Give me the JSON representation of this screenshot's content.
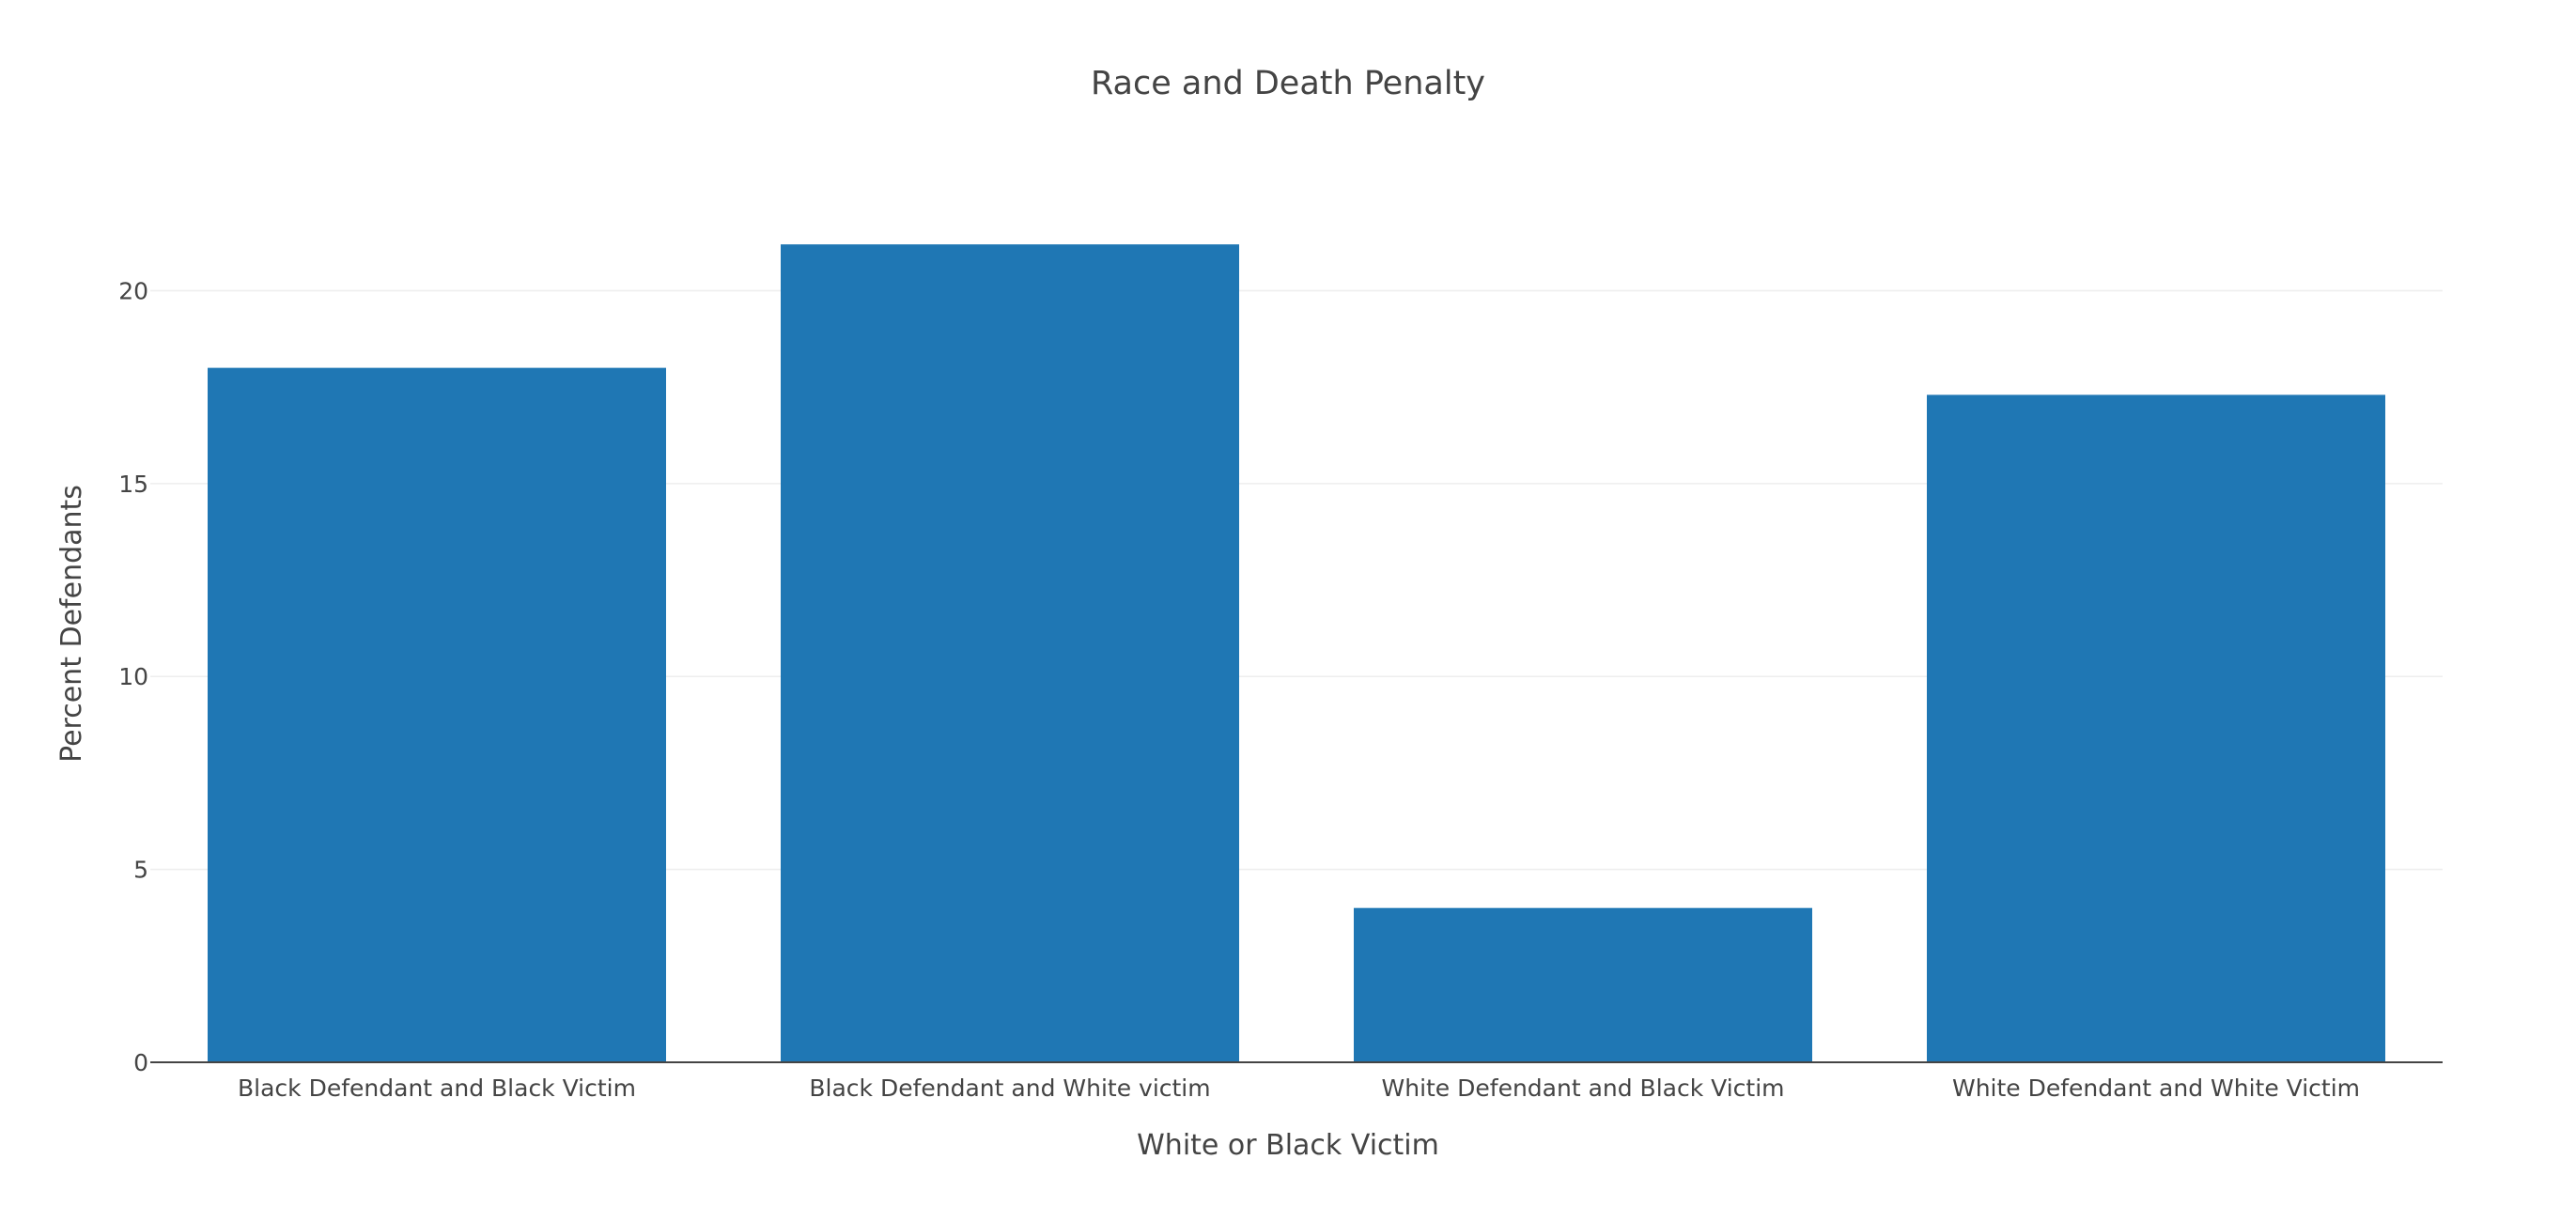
{
  "chart_data": {
    "type": "bar",
    "title": "Race and Death Penalty",
    "xlabel": "White or Black Victim",
    "ylabel": "Percent Defendants",
    "categories": [
      "Black Defendant and Black Victim",
      "Black Defendant and White victim",
      "White Defendant and Black Victim",
      "White Defendant and White Victim"
    ],
    "values": [
      18.0,
      21.2,
      4.0,
      17.3
    ],
    "ylim": [
      0,
      22.3
    ],
    "yticks": [
      0,
      5,
      10,
      15,
      20
    ],
    "grid": true,
    "legend": "none",
    "bar_color": "#1f77b4",
    "grid_color": "#eeeeee",
    "axis_color": "#444444",
    "text_color": "#444444"
  }
}
